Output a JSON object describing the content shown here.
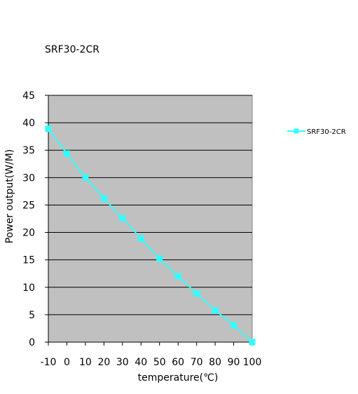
{
  "chart_data": {
    "type": "line",
    "title": "SRF30-2CR",
    "xlabel": "temperature(℃)",
    "ylabel": "Power output(W/M)",
    "x": [
      -10,
      0,
      10,
      20,
      30,
      40,
      50,
      60,
      70,
      80,
      90,
      100
    ],
    "x_tick_labels": [
      "-10",
      "0",
      "10",
      "20",
      "30",
      "40",
      "50",
      "60",
      "70",
      "80",
      "90",
      "100"
    ],
    "xlim": [
      -10,
      100
    ],
    "ylim": [
      0,
      45
    ],
    "y_ticks": [
      0,
      5,
      10,
      15,
      20,
      25,
      30,
      35,
      40,
      45
    ],
    "grid": true,
    "legend_position": "right",
    "plot_background": "#c0c0c0",
    "series": [
      {
        "name": "SRF30-2CR",
        "color": "#33ffff",
        "values": [
          38.9,
          34.4,
          30.0,
          26.2,
          22.6,
          18.9,
          15.2,
          12.0,
          8.9,
          5.8,
          3.1,
          0.0
        ]
      }
    ]
  }
}
